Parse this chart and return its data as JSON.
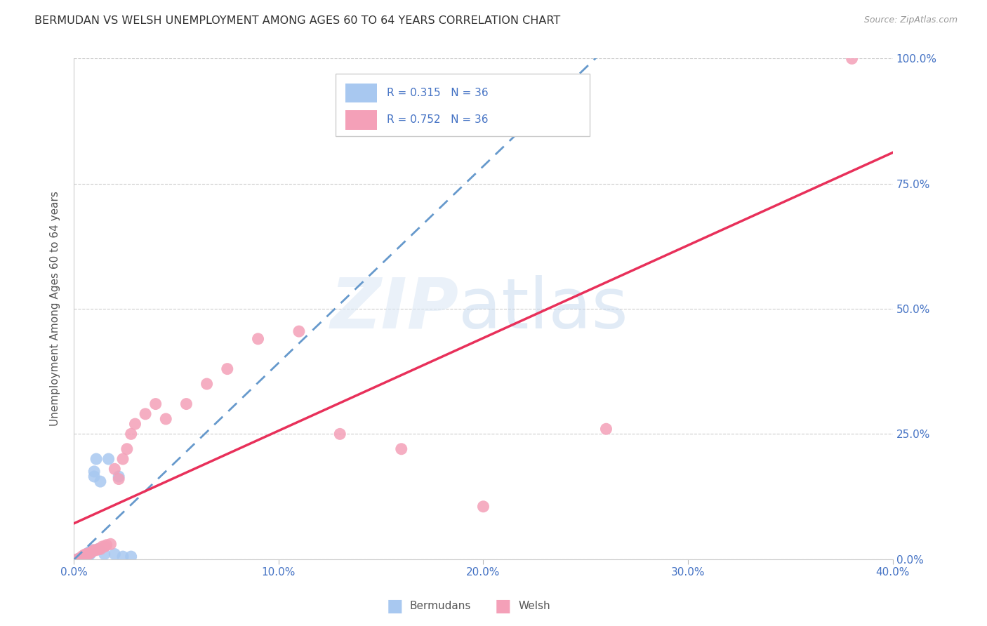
{
  "title": "BERMUDAN VS WELSH UNEMPLOYMENT AMONG AGES 60 TO 64 YEARS CORRELATION CHART",
  "source": "Source: ZipAtlas.com",
  "ylabel": "Unemployment Among Ages 60 to 64 years",
  "xlim": [
    0.0,
    0.4
  ],
  "ylim": [
    0.0,
    1.0
  ],
  "xticks": [
    0.0,
    0.1,
    0.2,
    0.3,
    0.4
  ],
  "xtick_labels": [
    "0.0%",
    "10.0%",
    "20.0%",
    "30.0%",
    "40.0%"
  ],
  "yticks": [
    0.0,
    0.25,
    0.5,
    0.75,
    1.0
  ],
  "ytick_labels": [
    "0.0%",
    "25.0%",
    "50.0%",
    "75.0%",
    "100.0%"
  ],
  "bermudan_R": 0.315,
  "bermudan_N": 36,
  "welsh_R": 0.752,
  "welsh_N": 36,
  "bermudan_color": "#a8c8f0",
  "bermudan_line_color": "#6699cc",
  "welsh_color": "#f4a0b8",
  "welsh_line_color": "#e8305a",
  "title_color": "#333333",
  "axis_label_color": "#555555",
  "tick_color": "#4472c4",
  "bermudan_x": [
    0.002,
    0.003,
    0.003,
    0.004,
    0.004,
    0.004,
    0.005,
    0.005,
    0.005,
    0.005,
    0.005,
    0.005,
    0.006,
    0.006,
    0.006,
    0.006,
    0.006,
    0.007,
    0.007,
    0.007,
    0.007,
    0.008,
    0.008,
    0.009,
    0.009,
    0.01,
    0.01,
    0.011,
    0.012,
    0.013,
    0.015,
    0.017,
    0.02,
    0.022,
    0.024,
    0.028
  ],
  "bermudan_y": [
    0.0,
    0.0,
    0.0,
    0.0,
    0.0,
    0.0,
    0.0,
    0.0,
    0.0,
    0.0,
    0.0,
    0.0,
    0.0,
    0.0,
    0.005,
    0.005,
    0.008,
    0.005,
    0.008,
    0.01,
    0.012,
    0.01,
    0.015,
    0.015,
    0.018,
    0.165,
    0.175,
    0.2,
    0.02,
    0.155,
    0.01,
    0.2,
    0.01,
    0.165,
    0.005,
    0.005
  ],
  "welsh_x": [
    0.002,
    0.003,
    0.003,
    0.004,
    0.005,
    0.006,
    0.007,
    0.008,
    0.009,
    0.01,
    0.011,
    0.012,
    0.013,
    0.014,
    0.015,
    0.016,
    0.018,
    0.02,
    0.022,
    0.024,
    0.026,
    0.028,
    0.03,
    0.035,
    0.04,
    0.045,
    0.055,
    0.065,
    0.075,
    0.09,
    0.11,
    0.13,
    0.16,
    0.2,
    0.26,
    0.38
  ],
  "welsh_y": [
    0.0,
    0.0,
    0.0,
    0.005,
    0.008,
    0.01,
    0.01,
    0.012,
    0.015,
    0.018,
    0.018,
    0.02,
    0.02,
    0.025,
    0.025,
    0.028,
    0.03,
    0.18,
    0.16,
    0.2,
    0.22,
    0.25,
    0.27,
    0.29,
    0.31,
    0.28,
    0.31,
    0.35,
    0.38,
    0.44,
    0.455,
    0.25,
    0.22,
    0.105,
    0.26,
    1.0
  ],
  "legend_patch1_color": "#a8c8f0",
  "legend_patch2_color": "#f4a0b8"
}
